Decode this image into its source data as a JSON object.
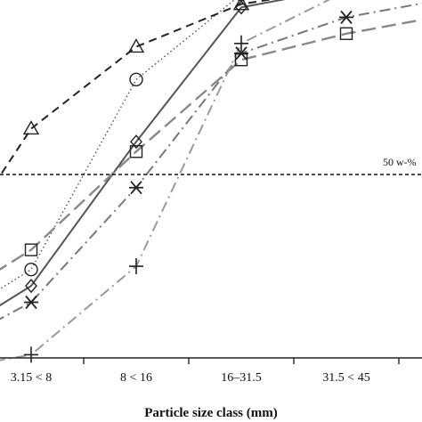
{
  "chart_data": {
    "type": "line",
    "title": "",
    "xlabel": "Particle size class (mm)",
    "ylabel": "",
    "categories": [
      "3.15 < 8",
      "8 < 16",
      "16–31.5",
      "31.5 < 45"
    ],
    "x_visible_range": [
      -0.35,
      3.85
    ],
    "y_visible_range": [
      -30,
      110
    ],
    "grid": false,
    "reference_line": {
      "value": 50,
      "label": "50 w-%"
    },
    "series": [
      {
        "id": "triangle",
        "marker": "triangle",
        "line": "dashed",
        "color": "#222222",
        "x": [
          -0.35,
          0,
          1,
          2,
          3,
          3.85
        ],
        "y": [
          47,
          64,
          89,
          102,
          107,
          107
        ]
      },
      {
        "id": "circle",
        "marker": "circle",
        "line": "dotted",
        "color": "#444444",
        "x": [
          -0.35,
          0,
          1,
          2,
          3,
          3.85
        ],
        "y": [
          14,
          21,
          79,
          105,
          107,
          107
        ]
      },
      {
        "id": "diamond",
        "marker": "diamond",
        "line": "solid",
        "color": "#555555",
        "x": [
          -0.35,
          0,
          1,
          2,
          3,
          3.85
        ],
        "y": [
          9,
          16,
          60,
          101,
          107,
          107
        ]
      },
      {
        "id": "square",
        "marker": "square",
        "line": "long-dash",
        "color": "#888888",
        "x": [
          -0.35,
          0,
          1,
          2,
          3,
          3.85
        ],
        "y": [
          20,
          27,
          57,
          85,
          93,
          98
        ]
      },
      {
        "id": "star",
        "marker": "asterisk",
        "line": "dash-dot",
        "color": "#777777",
        "x": [
          -0.35,
          0,
          1,
          2,
          3,
          3.85
        ],
        "y": [
          5,
          11,
          46,
          87,
          98,
          103
        ]
      },
      {
        "id": "plus",
        "marker": "plus",
        "line": "dash-dot",
        "color": "#999999",
        "x": [
          -0.35,
          0,
          1,
          2,
          3,
          3.85
        ],
        "y": [
          -7,
          -5,
          22,
          90,
          106,
          107
        ]
      }
    ]
  }
}
